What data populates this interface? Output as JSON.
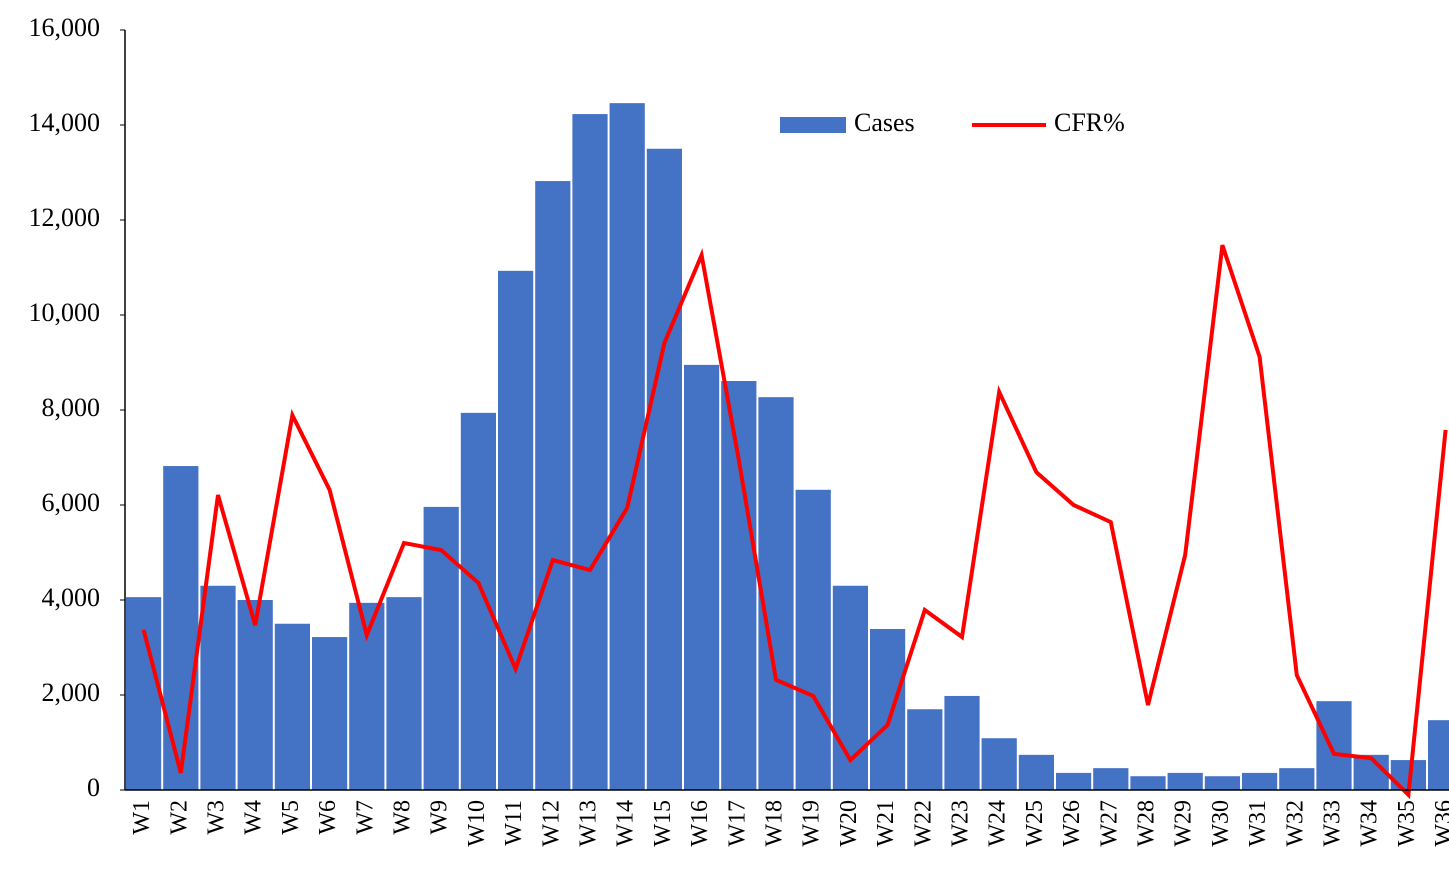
{
  "chart_data": {
    "type": "bar-line",
    "categories": [
      "W1",
      "W2",
      "W3",
      "W4",
      "W5",
      "W6",
      "W7",
      "W8",
      "W9",
      "W10",
      "W11",
      "W12",
      "W13",
      "W14",
      "W15",
      "W16",
      "W17",
      "W18",
      "W19",
      "W20",
      "W21",
      "W22",
      "W23",
      "W24",
      "W25",
      "W26",
      "W27",
      "W28",
      "W29",
      "W30",
      "W31",
      "W32",
      "W33",
      "W34",
      "W35",
      "W36"
    ],
    "series": [
      {
        "name": "Cases",
        "type": "bar",
        "color": "#4472c4",
        "values": [
          4060,
          6820,
          4300,
          4000,
          3500,
          3220,
          3940,
          4060,
          5960,
          7940,
          10930,
          12820,
          14230,
          14460,
          13500,
          8950,
          8610,
          8270,
          6320,
          4300,
          3390,
          1700,
          1980,
          1090,
          740,
          360,
          460,
          290,
          360,
          290,
          360,
          460,
          1870,
          740,
          630,
          1470
        ]
      },
      {
        "name": "CFR%",
        "type": "line",
        "color": "#ff0000",
        "values": [
          3370,
          360,
          6210,
          3470,
          7890,
          6320,
          3260,
          5200,
          5050,
          4360,
          2550,
          4840,
          4630,
          5940,
          9410,
          11260,
          6950,
          2320,
          1980,
          630,
          1370,
          3790,
          3220,
          8380,
          6690,
          6000,
          5640,
          1790,
          4950,
          11470,
          9120,
          2420,
          760,
          670,
          -100,
          7580
        ]
      }
    ],
    "ylim": [
      0,
      16000
    ],
    "yticks": [
      0,
      {
        "value": 2000,
        "label": "2,000"
      },
      {
        "value": 4000,
        "label": "4,000"
      },
      {
        "value": 6000,
        "label": "6,000"
      },
      {
        "value": 8000,
        "label": "8,000"
      },
      {
        "value": 10000,
        "label": "10,000"
      },
      {
        "value": 12000,
        "label": "12,000"
      },
      {
        "value": 14000,
        "label": "14,000"
      },
      {
        "value": 16000,
        "label": "16,000"
      }
    ],
    "legend": "top-center"
  }
}
